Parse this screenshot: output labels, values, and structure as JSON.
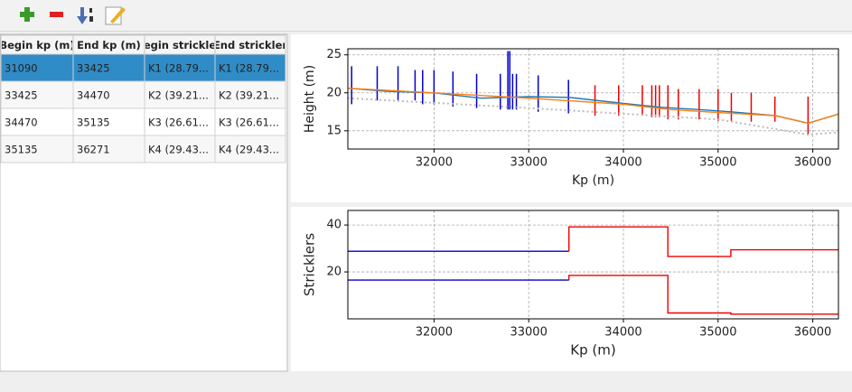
{
  "table": {
    "columns": [
      "Begin kp (m)",
      "End kp (m)",
      "egin strickle",
      "End strickler"
    ],
    "rows": [
      [
        "31090",
        "33425",
        "K1 (28.79...",
        "K1 (28.79..."
      ],
      [
        "33425",
        "34470",
        "K2 (39.21...",
        "K2 (39.21..."
      ],
      [
        "34470",
        "35135",
        "K3 (26.61...",
        "K3 (26.61..."
      ],
      [
        "35135",
        "36271",
        "K4 (29.43...",
        "K4 (29.43..."
      ]
    ],
    "selected_row": 0
  },
  "chart_data": [
    {
      "type": "line",
      "xlabel": "Kp (m)",
      "ylabel": "Height (m)",
      "xlim": [
        31090,
        36271
      ],
      "ylim": [
        12.6,
        25.8
      ],
      "xticks": [
        32000,
        33000,
        34000,
        35000,
        36000
      ],
      "yticks": [
        15,
        20,
        25
      ],
      "grid": true,
      "series": [
        {
          "color": "#bbbbbb",
          "dash": "dotted",
          "x": [
            31090,
            33000,
            35000,
            35950,
            36271
          ],
          "values": [
            19.3,
            18.0,
            16.5,
            14.5,
            14.8
          ]
        },
        {
          "color": "#1f77b4",
          "x": [
            31090,
            31500,
            32000,
            32500,
            33000,
            33425,
            34000,
            34400,
            34800,
            35135,
            35600,
            35950,
            36271
          ],
          "values": [
            20.6,
            20.2,
            20.0,
            19.3,
            19.5,
            19.4,
            18.6,
            18.1,
            17.8,
            17.5,
            17.0,
            16.0,
            17.2
          ]
        },
        {
          "color": "#ff7f0e",
          "x": [
            31090,
            32000,
            33000,
            34000,
            34500,
            35000,
            35600,
            35950,
            36271
          ],
          "values": [
            20.6,
            20.0,
            19.3,
            18.5,
            17.8,
            17.4,
            17.0,
            16.0,
            17.2
          ]
        }
      ],
      "profiles": [
        {
          "color": "#0000cc",
          "x": [
            31130,
            31400,
            31620,
            31800,
            31880,
            32000,
            32200,
            32450,
            32700,
            32780,
            32800,
            32830,
            32870,
            33100,
            33420
          ],
          "low": [
            18.5,
            19,
            19,
            19,
            18.5,
            18.5,
            18.2,
            18,
            17.8,
            17.8,
            17.8,
            17.8,
            17.8,
            17.5,
            17.3
          ],
          "high": [
            23.5,
            23.5,
            23.5,
            23,
            23,
            23,
            22.8,
            22.5,
            22.5,
            25.5,
            25.5,
            22.5,
            22.5,
            22.3,
            21.7
          ]
        },
        {
          "color": "#ee0000",
          "x": [
            33700,
            33950,
            34200,
            34300,
            34340,
            34380,
            34470,
            34580,
            34800,
            35000,
            35140,
            35350,
            35600,
            35950
          ],
          "low": [
            17,
            17,
            17,
            16.8,
            16.8,
            16.8,
            16.5,
            16.5,
            16.5,
            16.3,
            16.3,
            16.2,
            16.2,
            14.5
          ],
          "high": [
            21,
            21,
            21,
            21,
            21,
            21,
            21,
            20.5,
            20.5,
            20.5,
            20,
            20,
            19.5,
            19.5
          ]
        }
      ]
    },
    {
      "type": "line",
      "xlabel": "Kp (m)",
      "ylabel": "Stricklers",
      "xlim": [
        31090,
        36271
      ],
      "ylim": [
        0,
        46.2
      ],
      "xticks": [
        32000,
        33000,
        34000,
        35000,
        36000
      ],
      "yticks": [
        20,
        40
      ],
      "grid": true,
      "series": [
        {
          "color": "#0000cc",
          "x": [
            31090,
            33425
          ],
          "values": [
            28.79,
            28.79
          ]
        },
        {
          "color": "#ee0000",
          "x": [
            33425,
            33425,
            34470,
            34470,
            35135,
            35135,
            36271
          ],
          "values": [
            28.79,
            39.21,
            39.21,
            26.61,
            26.61,
            29.43,
            29.43
          ]
        },
        {
          "color": "#0000cc",
          "x": [
            31090,
            33425
          ],
          "values": [
            16.5,
            16.5
          ]
        },
        {
          "color": "#ee0000",
          "x": [
            33425,
            33425,
            34470,
            34470,
            35135,
            35135,
            36271
          ],
          "values": [
            16.5,
            18.5,
            18.5,
            2.5,
            2.5,
            2,
            2
          ]
        }
      ]
    }
  ]
}
